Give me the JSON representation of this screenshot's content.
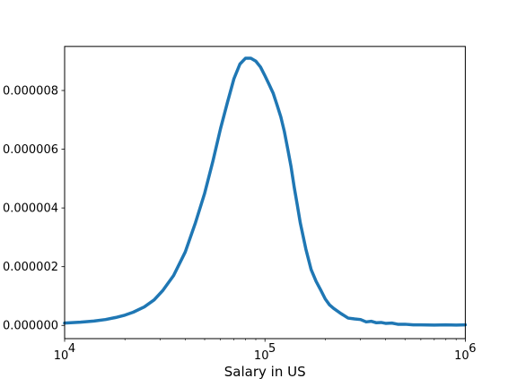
{
  "chart_data": {
    "type": "line",
    "title": "",
    "xlabel": "Salary in US",
    "ylabel": "",
    "xscale": "log",
    "xlim": [
      10000,
      1000000
    ],
    "ylim": [
      -4.5e-07,
      9.5e-06
    ],
    "grid": false,
    "x_ticks": [
      {
        "value": 10000,
        "base": "10",
        "exp": "4"
      },
      {
        "value": 100000,
        "base": "10",
        "exp": "5"
      },
      {
        "value": 1000000,
        "base": "10",
        "exp": "6"
      }
    ],
    "y_ticks": [
      {
        "value": 0,
        "label": "0.000000"
      },
      {
        "value": 2e-06,
        "label": "0.000002"
      },
      {
        "value": 4e-06,
        "label": "0.000004"
      },
      {
        "value": 6e-06,
        "label": "0.000006"
      },
      {
        "value": 8e-06,
        "label": "0.000008"
      }
    ],
    "series": [
      {
        "color": "#1f77b4",
        "x": [
          10000,
          12000,
          14000,
          16000,
          18000,
          20000,
          22000,
          25000,
          28000,
          31000,
          35000,
          40000,
          45000,
          50000,
          55000,
          60000,
          65000,
          70000,
          75000,
          80000,
          85000,
          90000,
          95000,
          100000,
          105000,
          110000,
          115000,
          120000,
          125000,
          130000,
          135000,
          140000,
          145000,
          150000,
          160000,
          170000,
          180000,
          190000,
          200000,
          210000,
          220000,
          240000,
          260000,
          280000,
          300000,
          320000,
          340000,
          360000,
          380000,
          400000,
          430000,
          460000,
          500000,
          550000,
          600000,
          700000,
          800000,
          900000,
          1000000
        ],
        "y": [
          8e-08,
          1.1e-07,
          1.5e-07,
          2e-07,
          2.7e-07,
          3.5e-07,
          4.5e-07,
          6.3e-07,
          8.7e-07,
          1.2e-06,
          1.7e-06,
          2.5e-06,
          3.5e-06,
          4.5e-06,
          5.6e-06,
          6.7e-06,
          7.6e-06,
          8.4e-06,
          8.9e-06,
          9.1e-06,
          9.1e-06,
          9e-06,
          8.8e-06,
          8.5e-06,
          8.2e-06,
          7.9e-06,
          7.5e-06,
          7.1e-06,
          6.6e-06,
          6e-06,
          5.4e-06,
          4.7e-06,
          4.1e-06,
          3.5e-06,
          2.6e-06,
          1.9e-06,
          1.5e-06,
          1.2e-06,
          9e-07,
          7e-07,
          5.8e-07,
          4e-07,
          2.5e-07,
          2.2e-07,
          2e-07,
          1.2e-07,
          1.4e-07,
          9e-08,
          1e-07,
          7e-08,
          8e-08,
          4e-08,
          4e-08,
          2e-08,
          2e-08,
          1e-08,
          2e-08,
          1e-08,
          2e-08
        ]
      }
    ]
  }
}
